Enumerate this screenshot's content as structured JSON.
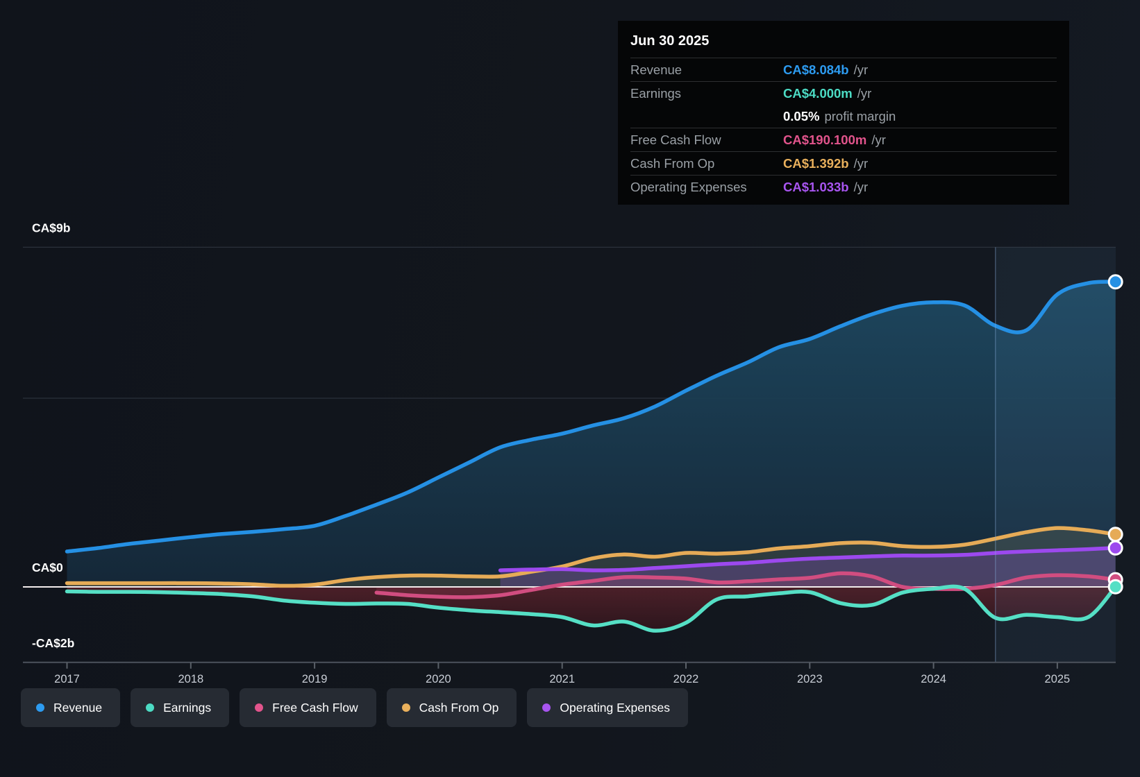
{
  "tooltip": {
    "date": "Jun 30 2025",
    "rows": [
      {
        "label": "Revenue",
        "value": "CA$8.084b",
        "suffix": "/yr",
        "color": "#2d9bf0"
      },
      {
        "label": "Earnings",
        "value": "CA$4.000m",
        "suffix": "/yr",
        "color": "#4cdbc4"
      },
      {
        "label": "Free Cash Flow",
        "value": "CA$190.100m",
        "suffix": "/yr",
        "color": "#e2548c"
      },
      {
        "label": "Cash From Op",
        "value": "CA$1.392b",
        "suffix": "/yr",
        "color": "#e9b05c"
      },
      {
        "label": "Operating Expenses",
        "value": "CA$1.033b",
        "suffix": "/yr",
        "color": "#a855f0"
      }
    ],
    "profit_margin": {
      "value": "0.05%",
      "label": "profit margin"
    }
  },
  "legend": {
    "items": [
      {
        "label": "Revenue",
        "color": "#2d9bf0"
      },
      {
        "label": "Earnings",
        "color": "#4cdbc4"
      },
      {
        "label": "Free Cash Flow",
        "color": "#e2548c"
      },
      {
        "label": "Cash From Op",
        "color": "#e9b05c"
      },
      {
        "label": "Operating Expenses",
        "color": "#a855f0"
      }
    ]
  },
  "chart_data": {
    "type": "area",
    "title": "",
    "x_ticks": [
      2017,
      2018,
      2019,
      2020,
      2021,
      2022,
      2023,
      2024,
      2025
    ],
    "ylim": [
      -2,
      9
    ],
    "x_range": [
      2017,
      2025.47
    ],
    "grid": true,
    "legend_position": "bottom",
    "y_axis": {
      "unit": "CA$ billions",
      "gridlines": [
        {
          "value": 9,
          "label": "CA$9b"
        },
        {
          "value": 5,
          "label": ""
        },
        {
          "value": 0,
          "label": "CA$0"
        },
        {
          "value": -2,
          "label": "-CA$2b"
        }
      ]
    },
    "highlight_from_x": 2024.5,
    "series": [
      {
        "name": "Revenue",
        "color": "#2590e4",
        "fill": "gradient-blue",
        "x": [
          2017,
          2017.25,
          2017.5,
          2017.75,
          2018,
          2018.25,
          2018.5,
          2018.75,
          2019,
          2019.25,
          2019.5,
          2019.75,
          2020,
          2020.25,
          2020.5,
          2020.75,
          2021,
          2021.25,
          2021.5,
          2021.75,
          2022,
          2022.25,
          2022.5,
          2022.75,
          2023,
          2023.25,
          2023.5,
          2023.75,
          2024,
          2024.25,
          2024.5,
          2024.75,
          2025,
          2025.25,
          2025.47
        ],
        "values": [
          0.94,
          1.03,
          1.14,
          1.23,
          1.32,
          1.4,
          1.46,
          1.53,
          1.62,
          1.88,
          2.18,
          2.5,
          2.9,
          3.3,
          3.7,
          3.9,
          4.06,
          4.28,
          4.47,
          4.78,
          5.2,
          5.6,
          5.95,
          6.35,
          6.57,
          6.91,
          7.22,
          7.45,
          7.54,
          7.46,
          6.92,
          6.8,
          7.75,
          8.05,
          8.084
        ]
      },
      {
        "name": "Earnings",
        "color": "#55dfc5",
        "fill": "maroon-negative",
        "x": [
          2017,
          2017.25,
          2017.5,
          2017.75,
          2018,
          2018.25,
          2018.5,
          2018.75,
          2019,
          2019.25,
          2019.5,
          2019.75,
          2020,
          2020.25,
          2020.5,
          2020.75,
          2021,
          2021.25,
          2021.5,
          2021.75,
          2022,
          2022.25,
          2022.5,
          2022.75,
          2023,
          2023.25,
          2023.5,
          2023.75,
          2024,
          2024.25,
          2024.5,
          2024.75,
          2025,
          2025.25,
          2025.47
        ],
        "values": [
          -0.12,
          -0.13,
          -0.13,
          -0.14,
          -0.16,
          -0.19,
          -0.25,
          -0.36,
          -0.42,
          -0.45,
          -0.44,
          -0.45,
          -0.55,
          -0.62,
          -0.67,
          -0.72,
          -0.8,
          -1.02,
          -0.92,
          -1.16,
          -0.95,
          -0.33,
          -0.25,
          -0.17,
          -0.14,
          -0.43,
          -0.48,
          -0.15,
          -0.05,
          -0.05,
          -0.82,
          -0.74,
          -0.8,
          -0.8,
          0.004
        ]
      },
      {
        "name": "Free Cash Flow",
        "color": "#d14d80",
        "fill": "pink",
        "x": [
          2019.5,
          2019.75,
          2020,
          2020.25,
          2020.5,
          2020.75,
          2021,
          2021.25,
          2021.5,
          2021.75,
          2022,
          2022.25,
          2022.5,
          2022.75,
          2023,
          2023.25,
          2023.5,
          2023.75,
          2024,
          2024.25,
          2024.5,
          2024.75,
          2025,
          2025.25,
          2025.47
        ],
        "values": [
          -0.15,
          -0.22,
          -0.26,
          -0.27,
          -0.22,
          -0.08,
          0.06,
          0.16,
          0.26,
          0.25,
          0.22,
          0.12,
          0.15,
          0.2,
          0.24,
          0.36,
          0.28,
          0.0,
          -0.05,
          -0.05,
          0.05,
          0.25,
          0.31,
          0.28,
          0.19
        ]
      },
      {
        "name": "Cash From Op",
        "color": "#e6ab57",
        "fill": "olive",
        "x": [
          2017,
          2017.25,
          2017.5,
          2017.75,
          2018,
          2018.25,
          2018.5,
          2018.75,
          2019,
          2019.25,
          2019.5,
          2019.75,
          2020,
          2020.25,
          2020.5,
          2020.75,
          2021,
          2021.25,
          2021.5,
          2021.75,
          2022,
          2022.25,
          2022.5,
          2022.75,
          2023,
          2023.25,
          2023.5,
          2023.75,
          2024,
          2024.25,
          2024.5,
          2024.75,
          2025,
          2025.25,
          2025.47
        ],
        "values": [
          0.1,
          0.1,
          0.1,
          0.1,
          0.1,
          0.09,
          0.07,
          0.03,
          0.06,
          0.18,
          0.26,
          0.3,
          0.3,
          0.28,
          0.28,
          0.4,
          0.54,
          0.76,
          0.86,
          0.8,
          0.9,
          0.88,
          0.92,
          1.02,
          1.08,
          1.16,
          1.17,
          1.08,
          1.06,
          1.12,
          1.28,
          1.45,
          1.56,
          1.5,
          1.392
        ]
      },
      {
        "name": "Operating Expenses",
        "color": "#9c49ee",
        "fill": "purple",
        "x": [
          2020.5,
          2020.75,
          2021,
          2021.25,
          2021.5,
          2021.75,
          2022,
          2022.25,
          2022.5,
          2022.75,
          2023,
          2023.25,
          2023.5,
          2023.75,
          2024,
          2024.25,
          2024.5,
          2024.75,
          2025,
          2025.25,
          2025.47
        ],
        "values": [
          0.44,
          0.46,
          0.47,
          0.44,
          0.45,
          0.5,
          0.55,
          0.6,
          0.64,
          0.7,
          0.75,
          0.78,
          0.81,
          0.83,
          0.83,
          0.85,
          0.9,
          0.94,
          0.97,
          1.0,
          1.033
        ]
      }
    ]
  },
  "colors": {
    "background": "#12161d",
    "tooltip_bg": "#050607",
    "zero_line": "#f3ecec",
    "gridline": "#2b313b",
    "axis_line": "#4c525c",
    "tick_label": "#c9ced6",
    "axis_label": "#ffffff",
    "highlight_band": "rgba(115,165,215,0.08)",
    "highlight_edge": "rgba(135,170,215,0.38)"
  }
}
